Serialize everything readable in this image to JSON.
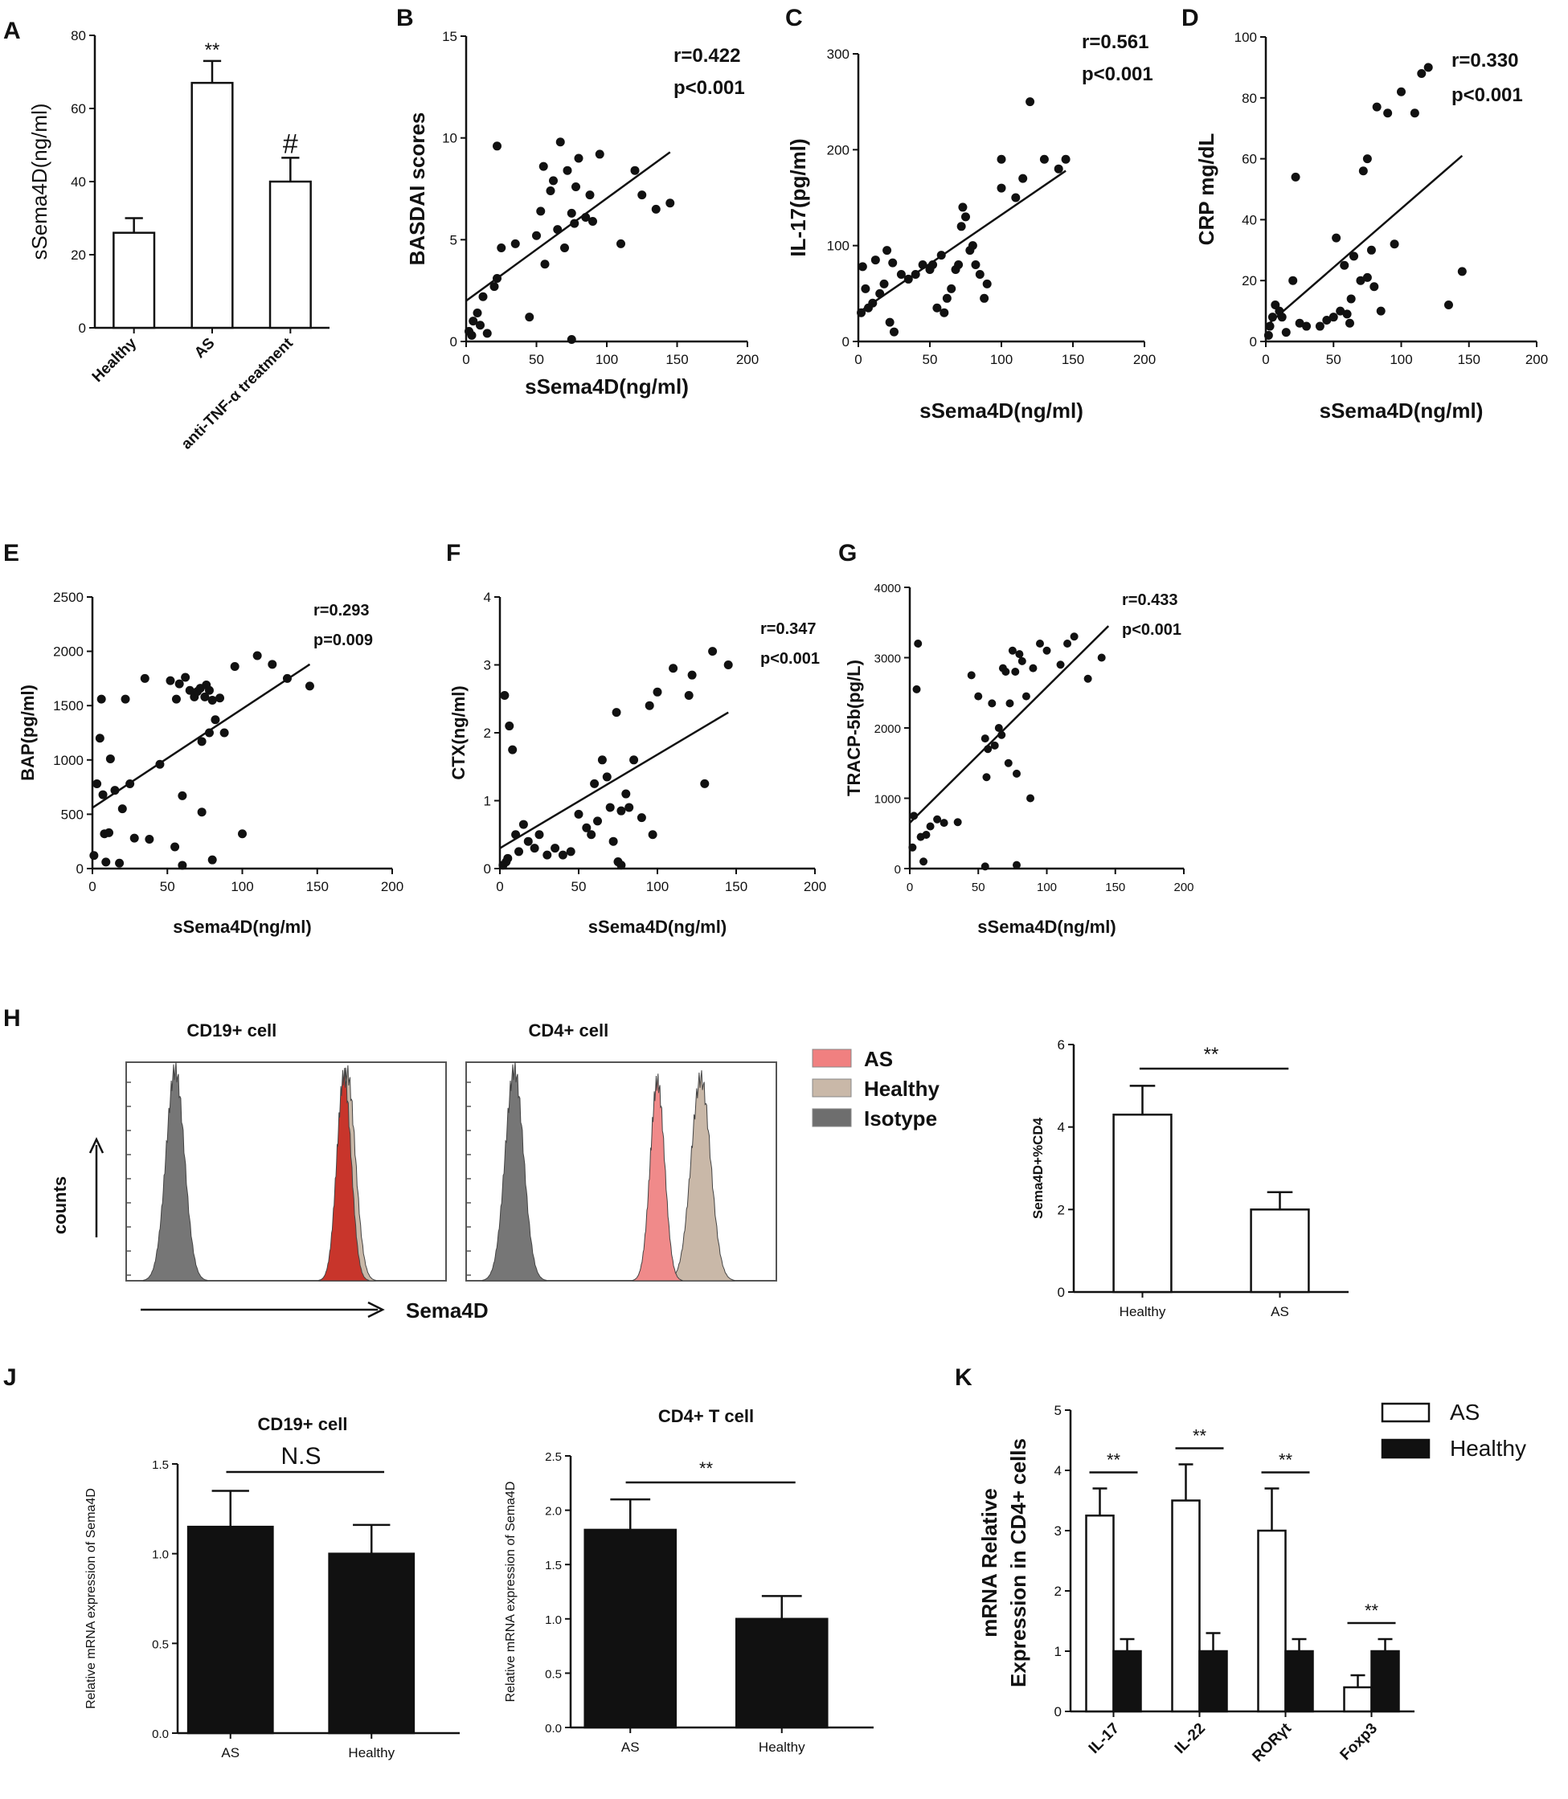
{
  "chart_data": [
    {
      "id": "A",
      "type": "bar",
      "panel_label": "A",
      "categories": [
        "Healthy",
        "AS",
        "anti-TNF-α treatment"
      ],
      "values": [
        26,
        67,
        40
      ],
      "errors": [
        4,
        6,
        6.5
      ],
      "annotations": [
        "",
        "**",
        "#"
      ],
      "ylabel": "sSema4D(ng/ml)",
      "xlabel": "",
      "ylim": [
        0,
        80
      ],
      "yticks": [
        "0",
        "20",
        "40",
        "60",
        "80"
      ]
    },
    {
      "id": "B",
      "type": "scatter",
      "panel_label": "B",
      "xlabel": "sSema4D(ng/ml)",
      "ylabel": "BASDAI scores",
      "xlim": [
        0,
        200
      ],
      "ylim": [
        0,
        15
      ],
      "xticks": [
        "0",
        "50",
        "100",
        "150",
        "200"
      ],
      "yticks": [
        "0",
        "5",
        "10",
        "15"
      ],
      "stats": [
        "r=0.422",
        "p<0.001"
      ],
      "fit": [
        [
          0,
          2.0
        ],
        [
          145,
          9.3
        ]
      ],
      "points": [
        [
          2,
          0.5
        ],
        [
          4,
          0.3
        ],
        [
          5,
          1.0
        ],
        [
          8,
          1.4
        ],
        [
          10,
          0.8
        ],
        [
          12,
          2.2
        ],
        [
          15,
          0.4
        ],
        [
          20,
          2.7
        ],
        [
          22,
          3.1
        ],
        [
          25,
          4.6
        ],
        [
          22,
          9.6
        ],
        [
          35,
          4.8
        ],
        [
          45,
          1.2
        ],
        [
          50,
          5.2
        ],
        [
          53,
          6.4
        ],
        [
          55,
          8.6
        ],
        [
          56,
          3.8
        ],
        [
          60,
          7.4
        ],
        [
          62,
          7.9
        ],
        [
          65,
          5.5
        ],
        [
          67,
          9.8
        ],
        [
          70,
          4.6
        ],
        [
          72,
          8.4
        ],
        [
          75,
          6.3
        ],
        [
          77,
          5.8
        ],
        [
          78,
          7.6
        ],
        [
          80,
          9.0
        ],
        [
          85,
          6.1
        ],
        [
          88,
          7.2
        ],
        [
          90,
          5.9
        ],
        [
          95,
          9.2
        ],
        [
          110,
          4.8
        ],
        [
          120,
          8.4
        ],
        [
          125,
          7.2
        ],
        [
          135,
          6.5
        ],
        [
          145,
          6.8
        ],
        [
          75,
          0.1
        ]
      ]
    },
    {
      "id": "C",
      "type": "scatter",
      "panel_label": "C",
      "xlabel": "sSema4D(ng/ml)",
      "ylabel": "IL-17(pg/ml)",
      "xlim": [
        0,
        200
      ],
      "ylim": [
        0,
        300
      ],
      "xticks": [
        "0",
        "50",
        "100",
        "150",
        "200"
      ],
      "yticks": [
        "0",
        "100",
        "200",
        "300"
      ],
      "stats": [
        "r=0.561",
        "p<0.001"
      ],
      "fit": [
        [
          0,
          30
        ],
        [
          145,
          178
        ]
      ],
      "points": [
        [
          2,
          30
        ],
        [
          3,
          78
        ],
        [
          5,
          55
        ],
        [
          7,
          35
        ],
        [
          10,
          40
        ],
        [
          12,
          85
        ],
        [
          15,
          50
        ],
        [
          18,
          60
        ],
        [
          20,
          95
        ],
        [
          22,
          20
        ],
        [
          25,
          10
        ],
        [
          24,
          82
        ],
        [
          30,
          70
        ],
        [
          35,
          65
        ],
        [
          40,
          70
        ],
        [
          45,
          80
        ],
        [
          50,
          75
        ],
        [
          52,
          80
        ],
        [
          55,
          35
        ],
        [
          58,
          90
        ],
        [
          60,
          30
        ],
        [
          62,
          45
        ],
        [
          65,
          55
        ],
        [
          68,
          75
        ],
        [
          70,
          80
        ],
        [
          72,
          120
        ],
        [
          73,
          140
        ],
        [
          75,
          130
        ],
        [
          78,
          95
        ],
        [
          80,
          100
        ],
        [
          82,
          80
        ],
        [
          85,
          70
        ],
        [
          88,
          45
        ],
        [
          90,
          60
        ],
        [
          100,
          160
        ],
        [
          100,
          190
        ],
        [
          110,
          150
        ],
        [
          115,
          170
        ],
        [
          120,
          250
        ],
        [
          130,
          190
        ],
        [
          140,
          180
        ],
        [
          145,
          190
        ]
      ]
    },
    {
      "id": "D",
      "type": "scatter",
      "panel_label": "D",
      "xlabel": "sSema4D(ng/ml)",
      "ylabel": "CRP mg/dL",
      "xlim": [
        0,
        200
      ],
      "ylim": [
        0,
        100
      ],
      "xticks": [
        "0",
        "50",
        "100",
        "150",
        "200"
      ],
      "yticks": [
        "0",
        "20",
        "40",
        "60",
        "80",
        "100"
      ],
      "stats": [
        "r=0.330",
        "p<0.001"
      ],
      "fit": [
        [
          0,
          5
        ],
        [
          145,
          61
        ]
      ],
      "points": [
        [
          2,
          2
        ],
        [
          3,
          5
        ],
        [
          5,
          8
        ],
        [
          7,
          12
        ],
        [
          10,
          10
        ],
        [
          12,
          8
        ],
        [
          15,
          3
        ],
        [
          20,
          20
        ],
        [
          22,
          54
        ],
        [
          25,
          6
        ],
        [
          30,
          5
        ],
        [
          40,
          5
        ],
        [
          45,
          7
        ],
        [
          50,
          8
        ],
        [
          52,
          34
        ],
        [
          55,
          10
        ],
        [
          58,
          25
        ],
        [
          60,
          9
        ],
        [
          62,
          6
        ],
        [
          65,
          28
        ],
        [
          70,
          20
        ],
        [
          72,
          56
        ],
        [
          75,
          60
        ],
        [
          75,
          21
        ],
        [
          78,
          30
        ],
        [
          80,
          18
        ],
        [
          82,
          77
        ],
        [
          85,
          10
        ],
        [
          90,
          75
        ],
        [
          95,
          32
        ],
        [
          100,
          82
        ],
        [
          110,
          75
        ],
        [
          115,
          88
        ],
        [
          120,
          90
        ],
        [
          135,
          12
        ],
        [
          145,
          23
        ],
        [
          63,
          14
        ]
      ]
    },
    {
      "id": "E",
      "type": "scatter",
      "panel_label": "E",
      "xlabel": "sSema4D(ng/ml)",
      "ylabel": "BAP(pg/ml)",
      "xlim": [
        0,
        200
      ],
      "ylim": [
        0,
        2500
      ],
      "xticks": [
        "0",
        "50",
        "100",
        "150",
        "200"
      ],
      "yticks": [
        "0",
        "500",
        "1000",
        "1500",
        "2000",
        "2500"
      ],
      "stats": [
        "r=0.293",
        "p=0.009"
      ],
      "fit": [
        [
          0,
          560
        ],
        [
          145,
          1880
        ]
      ],
      "points": [
        [
          1,
          120
        ],
        [
          3,
          780
        ],
        [
          5,
          1200
        ],
        [
          6,
          1560
        ],
        [
          7,
          680
        ],
        [
          8,
          320
        ],
        [
          9,
          60
        ],
        [
          11,
          330
        ],
        [
          12,
          1010
        ],
        [
          15,
          720
        ],
        [
          18,
          50
        ],
        [
          20,
          550
        ],
        [
          22,
          1560
        ],
        [
          25,
          780
        ],
        [
          28,
          280
        ],
        [
          35,
          1750
        ],
        [
          38,
          270
        ],
        [
          45,
          960
        ],
        [
          52,
          1730
        ],
        [
          55,
          200
        ],
        [
          56,
          1560
        ],
        [
          58,
          1700
        ],
        [
          60,
          670
        ],
        [
          62,
          1760
        ],
        [
          65,
          1640
        ],
        [
          68,
          1580
        ],
        [
          70,
          1630
        ],
        [
          72,
          1660
        ],
        [
          73,
          1170
        ],
        [
          75,
          1580
        ],
        [
          76,
          1690
        ],
        [
          78,
          1250
        ],
        [
          78,
          1640
        ],
        [
          80,
          1550
        ],
        [
          82,
          1370
        ],
        [
          85,
          1570
        ],
        [
          88,
          1250
        ],
        [
          95,
          1860
        ],
        [
          100,
          320
        ],
        [
          110,
          1960
        ],
        [
          120,
          1880
        ],
        [
          130,
          1750
        ],
        [
          145,
          1680
        ],
        [
          60,
          30
        ],
        [
          73,
          520
        ],
        [
          80,
          80
        ]
      ]
    },
    {
      "id": "F",
      "type": "scatter",
      "panel_label": "F",
      "xlabel": "sSema4D(ng/ml)",
      "ylabel": "CTX(ng/ml)",
      "xlim": [
        0,
        200
      ],
      "ylim": [
        0,
        4
      ],
      "xticks": [
        "0",
        "50",
        "100",
        "150",
        "200"
      ],
      "yticks": [
        "0",
        "1",
        "2",
        "3",
        "4"
      ],
      "stats": [
        "r=0.347",
        "p<0.001"
      ],
      "fit": [
        [
          0,
          0.3
        ],
        [
          145,
          2.3
        ]
      ],
      "points": [
        [
          2,
          0.05
        ],
        [
          3,
          2.55
        ],
        [
          4,
          0.1
        ],
        [
          5,
          0.15
        ],
        [
          6,
          2.1
        ],
        [
          8,
          1.75
        ],
        [
          10,
          0.5
        ],
        [
          12,
          0.25
        ],
        [
          15,
          0.65
        ],
        [
          18,
          0.4
        ],
        [
          22,
          0.3
        ],
        [
          25,
          0.5
        ],
        [
          30,
          0.2
        ],
        [
          35,
          0.3
        ],
        [
          40,
          0.2
        ],
        [
          45,
          0.25
        ],
        [
          50,
          0.8
        ],
        [
          55,
          0.6
        ],
        [
          58,
          0.5
        ],
        [
          60,
          1.25
        ],
        [
          62,
          0.7
        ],
        [
          65,
          1.6
        ],
        [
          68,
          1.35
        ],
        [
          70,
          0.9
        ],
        [
          72,
          0.4
        ],
        [
          74,
          2.3
        ],
        [
          75,
          0.1
        ],
        [
          77,
          0.85
        ],
        [
          80,
          1.1
        ],
        [
          82,
          0.9
        ],
        [
          85,
          1.6
        ],
        [
          90,
          0.75
        ],
        [
          95,
          2.4
        ],
        [
          97,
          0.5
        ],
        [
          100,
          2.6
        ],
        [
          110,
          2.95
        ],
        [
          120,
          2.55
        ],
        [
          122,
          2.85
        ],
        [
          130,
          1.25
        ],
        [
          135,
          3.2
        ],
        [
          145,
          3.0
        ],
        [
          77,
          0.05
        ]
      ]
    },
    {
      "id": "G",
      "type": "scatter",
      "panel_label": "G",
      "xlabel": "sSema4D(ng/ml)",
      "ylabel": "TRACP-5b(pg/L)",
      "xlim": [
        0,
        200
      ],
      "ylim": [
        0,
        4000
      ],
      "xticks": [
        "0",
        "50",
        "100",
        "150",
        "200"
      ],
      "yticks": [
        "0",
        "1000",
        "2000",
        "3000",
        "4000"
      ],
      "stats": [
        "r=0.433",
        "p<0.001"
      ],
      "fit": [
        [
          0,
          650
        ],
        [
          145,
          3450
        ]
      ],
      "points": [
        [
          2,
          300
        ],
        [
          3,
          750
        ],
        [
          5,
          2550
        ],
        [
          6,
          3200
        ],
        [
          8,
          450
        ],
        [
          10,
          100
        ],
        [
          12,
          480
        ],
        [
          15,
          600
        ],
        [
          20,
          700
        ],
        [
          25,
          650
        ],
        [
          35,
          660
        ],
        [
          45,
          2750
        ],
        [
          50,
          2450
        ],
        [
          55,
          1850
        ],
        [
          56,
          1300
        ],
        [
          57,
          1700
        ],
        [
          60,
          2350
        ],
        [
          62,
          1750
        ],
        [
          65,
          2000
        ],
        [
          67,
          1900
        ],
        [
          68,
          2850
        ],
        [
          70,
          2800
        ],
        [
          72,
          1500
        ],
        [
          73,
          2350
        ],
        [
          75,
          3100
        ],
        [
          77,
          2800
        ],
        [
          78,
          1350
        ],
        [
          80,
          3050
        ],
        [
          82,
          2950
        ],
        [
          85,
          2450
        ],
        [
          88,
          1000
        ],
        [
          90,
          2850
        ],
        [
          95,
          3200
        ],
        [
          100,
          3100
        ],
        [
          110,
          2900
        ],
        [
          115,
          3200
        ],
        [
          120,
          3300
        ],
        [
          130,
          2700
        ],
        [
          140,
          3000
        ],
        [
          55,
          30
        ],
        [
          78,
          50
        ]
      ]
    },
    {
      "id": "H-right",
      "type": "bar",
      "panel_label": "H",
      "categories": [
        "Healthy",
        "AS"
      ],
      "values": [
        4.3,
        2.0
      ],
      "errors": [
        0.7,
        0.42
      ],
      "ylabel": "Sema4D+%CD4",
      "ylim": [
        0,
        6
      ],
      "yticks": [
        "0",
        "2",
        "4",
        "6"
      ],
      "significance": "**"
    },
    {
      "id": "J-left",
      "type": "bar",
      "panel_label": "J",
      "title": "CD19+ cell",
      "categories": [
        "AS",
        "Healthy"
      ],
      "values": [
        1.15,
        1.0
      ],
      "errors": [
        0.2,
        0.16
      ],
      "ylabel": "Relative mRNA expression of Sema4D",
      "ylim": [
        0,
        1.5
      ],
      "yticks": [
        "0.0",
        "0.5",
        "1.0",
        "1.5"
      ],
      "significance": "N.S"
    },
    {
      "id": "J-right",
      "type": "bar",
      "title": "CD4+ T cell",
      "categories": [
        "AS",
        "Healthy"
      ],
      "values": [
        1.82,
        1.0
      ],
      "errors": [
        0.28,
        0.21
      ],
      "ylabel": "Relative mRNA expression of Sema4D",
      "ylim": [
        0,
        2.5
      ],
      "yticks": [
        "0.0",
        "0.5",
        "1.0",
        "1.5",
        "2.0",
        "2.5"
      ],
      "significance": "**"
    },
    {
      "id": "K",
      "type": "bar",
      "panel_label": "K",
      "categories": [
        "IL-17",
        "IL-22",
        "RORγt",
        "Foxp3"
      ],
      "series": [
        {
          "name": "AS",
          "values": [
            3.25,
            3.5,
            3.0,
            0.4
          ],
          "errors": [
            0.45,
            0.6,
            0.7,
            0.2
          ]
        },
        {
          "name": "Healthy",
          "values": [
            1.0,
            1.0,
            1.0,
            1.0
          ],
          "errors": [
            0.2,
            0.3,
            0.2,
            0.2
          ]
        }
      ],
      "ylabel": [
        "mRNA Relative",
        "Expression  in CD4+ cells"
      ],
      "ylim": [
        0,
        5
      ],
      "yticks": [
        "0",
        "1",
        "2",
        "3",
        "4",
        "5"
      ],
      "significance": [
        "**",
        "**",
        "**",
        "**"
      ]
    }
  ],
  "flow_panel": {
    "panel_label": "H",
    "titles": [
      "CD19+ cell",
      "CD4+ cell"
    ],
    "y_axis": "counts",
    "x_axis": "Sema4D",
    "legend": [
      {
        "label": "AS",
        "color": "#f08080"
      },
      {
        "label": "Healthy",
        "color": "#c9b8a8"
      },
      {
        "label": "Isotype",
        "color": "#6e6e6e"
      }
    ]
  }
}
